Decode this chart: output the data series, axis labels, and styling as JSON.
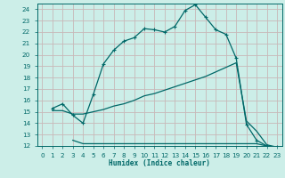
{
  "xlabel": "Humidex (Indice chaleur)",
  "ylabel": "",
  "xlim": [
    -0.5,
    23.5
  ],
  "ylim": [
    12,
    24.5
  ],
  "xticks": [
    0,
    1,
    2,
    3,
    4,
    5,
    6,
    7,
    8,
    9,
    10,
    11,
    12,
    13,
    14,
    15,
    16,
    17,
    18,
    19,
    20,
    21,
    22,
    23
  ],
  "yticks": [
    12,
    13,
    14,
    15,
    16,
    17,
    18,
    19,
    20,
    21,
    22,
    23,
    24
  ],
  "bg_color": "#cceee8",
  "line_color": "#006868",
  "grid_color": "#c8b8b8",
  "line1_x": [
    1,
    2,
    3,
    4,
    5,
    6,
    7,
    8,
    9,
    10,
    11,
    12,
    13,
    14,
    15,
    16,
    17,
    18,
    19,
    20,
    21,
    22,
    23
  ],
  "line1_y": [
    15.3,
    15.7,
    14.7,
    14.0,
    16.5,
    19.2,
    20.4,
    21.2,
    21.5,
    22.3,
    22.2,
    22.0,
    22.5,
    23.9,
    24.4,
    23.3,
    22.2,
    21.8,
    19.7,
    13.9,
    12.5,
    12.0,
    11.9
  ],
  "line2_x": [
    1,
    2,
    3,
    4,
    5,
    6,
    7,
    8,
    9,
    10,
    11,
    12,
    13,
    14,
    15,
    16,
    17,
    18,
    19,
    20,
    21,
    22,
    23
  ],
  "line2_y": [
    15.1,
    15.1,
    14.8,
    14.8,
    15.0,
    15.2,
    15.5,
    15.7,
    16.0,
    16.4,
    16.6,
    16.9,
    17.2,
    17.5,
    17.8,
    18.1,
    18.5,
    18.9,
    19.3,
    14.2,
    13.3,
    12.1,
    11.9
  ],
  "line3_x": [
    3,
    4,
    5,
    6,
    7,
    8,
    9,
    10,
    11,
    12,
    13,
    14,
    15,
    16,
    17,
    18,
    19,
    20,
    21,
    22,
    23
  ],
  "line3_y": [
    12.5,
    12.2,
    12.2,
    12.2,
    12.2,
    12.2,
    12.2,
    12.2,
    12.2,
    12.2,
    12.2,
    12.2,
    12.2,
    12.2,
    12.2,
    12.2,
    12.2,
    12.2,
    12.2,
    12.0,
    11.9
  ],
  "marker": "+",
  "markersize": 3.5,
  "linewidth": 0.9,
  "tick_fontsize": 5.2
}
